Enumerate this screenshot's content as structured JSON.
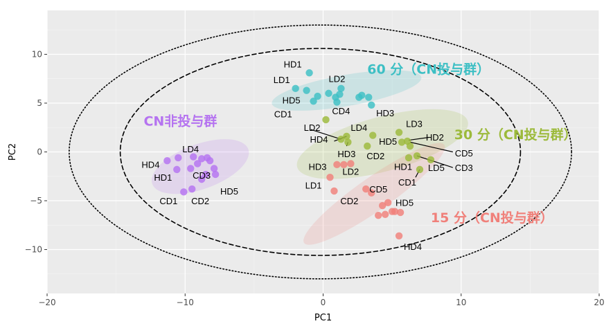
{
  "chart_data": {
    "type": "scatter",
    "xlabel": "PC1",
    "ylabel": "PC2",
    "xlim": [
      -20,
      20
    ],
    "ylim": [
      -14.5,
      14.5
    ],
    "x_ticks": [
      -20,
      -10,
      0,
      10,
      20
    ],
    "y_ticks": [
      -10,
      -5,
      0,
      5,
      10
    ],
    "x_tick_labels": [
      "−20",
      "−10",
      "0",
      "10",
      "20"
    ],
    "y_tick_labels": [
      "−10",
      "−5",
      "0",
      "5",
      "10"
    ],
    "grid": true,
    "background": "#ebebeb",
    "outer_ellipses": [
      {
        "style": "dashed",
        "cx": -0.2,
        "cy": 0,
        "rx": 14.5,
        "ry": 10.6
      },
      {
        "style": "dotted",
        "cx": -0.2,
        "cy": 0,
        "rx": 18.2,
        "ry": 13.0
      }
    ],
    "series": [
      {
        "group_label": "60 分（CN投与群）",
        "color": "#3dbfc4",
        "label_pos": [
          3.2,
          8.4
        ],
        "hull": {
          "cx": 1.7,
          "cy": 6.3,
          "rx": 5.5,
          "ry": 1.6,
          "angle": -10
        },
        "points": [
          [
            -1.0,
            8.1
          ],
          [
            -2.0,
            6.5
          ],
          [
            -1.2,
            6.3
          ],
          [
            -0.7,
            5.2
          ],
          [
            -0.4,
            5.7
          ],
          [
            0.4,
            6.0
          ],
          [
            0.9,
            5.6
          ],
          [
            1.2,
            5.9
          ],
          [
            1.3,
            6.5
          ],
          [
            2.6,
            5.6
          ],
          [
            2.8,
            5.8
          ],
          [
            3.3,
            5.6
          ],
          [
            3.5,
            4.8
          ],
          [
            1.0,
            5.1
          ]
        ],
        "labels": [
          {
            "text": "HD1",
            "pos": [
              -2.2,
              8.9
            ]
          },
          {
            "text": "LD1",
            "pos": [
              -3.0,
              7.3
            ]
          },
          {
            "text": "LD2",
            "pos": [
              1.0,
              7.4
            ]
          },
          {
            "text": "HD5",
            "pos": [
              -2.3,
              5.2
            ]
          },
          {
            "text": "CD1",
            "pos": [
              -2.9,
              3.8
            ]
          },
          {
            "text": "CD4",
            "pos": [
              1.3,
              4.1
            ]
          },
          {
            "text": "HD3",
            "pos": [
              4.5,
              3.9
            ]
          }
        ]
      },
      {
        "group_label": "30 分（CN投与群）",
        "color": "#9cba3b",
        "label_pos": [
          9.5,
          1.7
        ],
        "hull": {
          "cx": 4.3,
          "cy": 0.8,
          "rx": 6.4,
          "ry": 2.8,
          "angle": -15
        },
        "points": [
          [
            0.2,
            3.3
          ],
          [
            1.3,
            1.3
          ],
          [
            1.7,
            1.6
          ],
          [
            1.8,
            1.0
          ],
          [
            3.2,
            0.6
          ],
          [
            3.6,
            1.7
          ],
          [
            5.5,
            2.0
          ],
          [
            5.7,
            1.0
          ],
          [
            6.1,
            1.1
          ],
          [
            6.3,
            0.6
          ],
          [
            6.2,
            -0.6
          ],
          [
            6.8,
            -0.4
          ],
          [
            7.0,
            -1.8
          ],
          [
            7.8,
            -0.8
          ]
        ],
        "labels": [
          {
            "text": "LD2",
            "pos": [
              -0.8,
              2.4
            ]
          },
          {
            "text": "LD4",
            "pos": [
              2.6,
              2.4
            ]
          },
          {
            "text": "LD3",
            "pos": [
              6.6,
              2.8
            ]
          },
          {
            "text": "HD4",
            "pos": [
              -0.3,
              1.2
            ]
          },
          {
            "text": "HD5",
            "pos": [
              4.7,
              1.0
            ]
          },
          {
            "text": "HD2",
            "pos": [
              8.1,
              1.4
            ]
          },
          {
            "text": "HD3",
            "pos": [
              1.7,
              -0.3
            ]
          },
          {
            "text": "CD2",
            "pos": [
              3.8,
              -0.5
            ]
          },
          {
            "text": "CD5",
            "pos": [
              10.2,
              -0.2
            ]
          },
          {
            "text": "HD1",
            "pos": [
              5.8,
              -1.6
            ]
          },
          {
            "text": "LD5",
            "pos": [
              8.2,
              -1.7
            ]
          },
          {
            "text": "CD3",
            "pos": [
              10.2,
              -1.7
            ]
          },
          {
            "text": "CD1",
            "pos": [
              6.1,
              -3.2
            ]
          }
        ],
        "leaders": [
          [
            [
              -0.9,
              2.3
            ],
            [
              1.3,
              1.3
            ]
          ],
          [
            [
              0.8,
              1.1
            ],
            [
              1.7,
              1.6
            ]
          ],
          [
            [
              1.7,
              0.6
            ],
            [
              1.8,
              1.0
            ]
          ],
          [
            [
              6.2,
              1.2
            ],
            [
              7.7,
              1.5
            ]
          ],
          [
            [
              6.3,
              1.0
            ],
            [
              9.4,
              0.0
            ]
          ],
          [
            [
              6.8,
              -0.4
            ],
            [
              9.4,
              -1.6
            ]
          ],
          [
            [
              7.0,
              -1.8
            ],
            [
              6.7,
              -2.6
            ]
          ]
        ]
      },
      {
        "group_label": "15 分（CN投与群）",
        "color": "#f0807a",
        "label_pos": [
          7.8,
          -6.8
        ],
        "hull": {
          "cx": 3.7,
          "cy": -4.3,
          "rx": 6.2,
          "ry": 1.7,
          "angle": -35
        },
        "points": [
          [
            1.0,
            -1.3
          ],
          [
            1.5,
            -1.3
          ],
          [
            2.0,
            -1.2
          ],
          [
            0.5,
            -2.6
          ],
          [
            0.8,
            -4.0
          ],
          [
            3.1,
            -3.8
          ],
          [
            3.5,
            -4.2
          ],
          [
            4.3,
            -5.5
          ],
          [
            4.7,
            -5.2
          ],
          [
            5.0,
            -6.1
          ],
          [
            5.2,
            -6.1
          ],
          [
            5.6,
            -6.2
          ],
          [
            4.0,
            -6.5
          ],
          [
            4.5,
            -6.4
          ],
          [
            5.5,
            -8.6
          ]
        ],
        "labels": [
          {
            "text": "HD3",
            "pos": [
              -0.4,
              -1.6
            ]
          },
          {
            "text": "LD2",
            "pos": [
              2.0,
              -2.1
            ]
          },
          {
            "text": "LD1",
            "pos": [
              -0.7,
              -3.5
            ]
          },
          {
            "text": "CD5",
            "pos": [
              4.0,
              -3.9
            ]
          },
          {
            "text": "CD2",
            "pos": [
              1.9,
              -5.1
            ]
          },
          {
            "text": "HD5",
            "pos": [
              5.9,
              -5.3
            ]
          },
          {
            "text": "HD4",
            "pos": [
              6.5,
              -9.8
            ]
          }
        ]
      },
      {
        "group_label": "CN非投与群",
        "color": "#b573f0",
        "label_pos": [
          -13.0,
          3.1
        ],
        "hull": {
          "cx": -8.9,
          "cy": -1.5,
          "rx": 3.7,
          "ry": 2.3,
          "angle": -20
        },
        "points": [
          [
            -11.3,
            -0.9
          ],
          [
            -10.6,
            -1.8
          ],
          [
            -10.5,
            -0.6
          ],
          [
            -9.6,
            -1.7
          ],
          [
            -9.4,
            -0.5
          ],
          [
            -8.8,
            -0.7
          ],
          [
            -8.4,
            -0.6
          ],
          [
            -8.2,
            -0.9
          ],
          [
            -7.9,
            -1.7
          ],
          [
            -7.8,
            -2.3
          ],
          [
            -8.5,
            -2.3
          ],
          [
            -9.5,
            -3.8
          ],
          [
            -10.1,
            -4.1
          ],
          [
            -8.8,
            -2.8
          ],
          [
            -9.1,
            -1.2
          ]
        ],
        "labels": [
          {
            "text": "LD4",
            "pos": [
              -9.6,
              0.2
            ]
          },
          {
            "text": "HD4",
            "pos": [
              -12.5,
              -1.4
            ]
          },
          {
            "text": "HD1",
            "pos": [
              -11.6,
              -2.7
            ]
          },
          {
            "text": "CD3",
            "pos": [
              -8.8,
              -2.5
            ]
          },
          {
            "text": "HD5",
            "pos": [
              -6.8,
              -4.1
            ]
          },
          {
            "text": "CD1",
            "pos": [
              -11.2,
              -5.1
            ]
          },
          {
            "text": "CD2",
            "pos": [
              -8.9,
              -5.1
            ]
          }
        ]
      }
    ]
  }
}
